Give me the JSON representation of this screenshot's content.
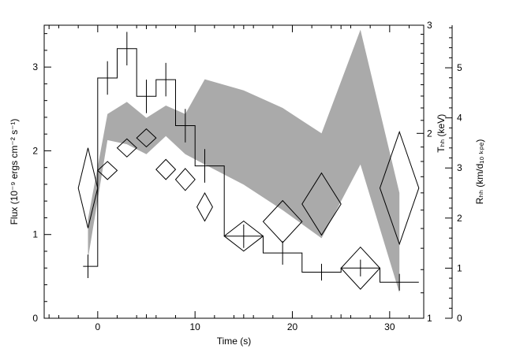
{
  "chart_data": {
    "type": "line",
    "xlabel": "Time (s)",
    "ylabel": "Flux (10⁻⁹ ergs cm⁻² s⁻¹)",
    "y2label": "Tₕₕ (keV)",
    "y3label": "Rₕₕ (km/d₁₀ ₖₚₑ)",
    "xlim": [
      -5.5,
      33.5
    ],
    "ylim": [
      0,
      3.5
    ],
    "y2lim": [
      1,
      3
    ],
    "y2scale": "log",
    "y3lim": [
      0,
      5.85
    ],
    "xticks": [
      "0",
      "10",
      "20",
      "30"
    ],
    "yticks": [
      "0",
      "1",
      "2",
      "3"
    ],
    "y2ticks": [
      "1",
      "2",
      "3"
    ],
    "y3ticks": [
      "0",
      "1",
      "2",
      "3",
      "4",
      "5"
    ],
    "colors": {
      "band": "#aaaaaa",
      "line": "#000000"
    },
    "flux_steps": {
      "edges": [
        -1.5,
        0,
        2,
        4,
        6,
        8,
        10,
        13,
        17,
        21,
        25,
        29,
        33
      ],
      "values": [
        0.62,
        2.87,
        3.22,
        2.65,
        2.85,
        2.3,
        1.82,
        0.98,
        0.78,
        0.55,
        0.6,
        0.43
      ]
    },
    "flux_errors": [
      {
        "x": -1,
        "y": 0.62,
        "lo": 0.48,
        "hi": 0.76
      },
      {
        "x": 1,
        "y": 2.87,
        "lo": 2.67,
        "hi": 3.07
      },
      {
        "x": 3,
        "y": 3.22,
        "lo": 3.02,
        "hi": 3.42
      },
      {
        "x": 5,
        "y": 2.65,
        "lo": 2.45,
        "hi": 2.85
      },
      {
        "x": 7,
        "y": 2.85,
        "lo": 2.65,
        "hi": 3.05
      },
      {
        "x": 9,
        "y": 2.3,
        "lo": 2.1,
        "hi": 2.5
      },
      {
        "x": 11,
        "y": 1.82,
        "lo": 1.62,
        "hi": 2.02
      },
      {
        "x": 15,
        "y": 0.98,
        "lo": 0.84,
        "hi": 1.12
      },
      {
        "x": 19,
        "y": 0.78,
        "lo": 0.64,
        "hi": 0.92
      },
      {
        "x": 23,
        "y": 0.55,
        "lo": 0.45,
        "hi": 0.65
      },
      {
        "x": 27,
        "y": 0.6,
        "lo": 0.5,
        "hi": 0.7
      },
      {
        "x": 31,
        "y": 0.43,
        "lo": 0.33,
        "hi": 0.53
      }
    ],
    "temperature_band": {
      "x": [
        -1,
        1,
        3,
        5,
        7,
        9,
        11,
        15,
        19,
        23,
        27,
        31
      ],
      "lower": [
        1.25,
        1.95,
        1.92,
        1.85,
        1.98,
        1.85,
        1.78,
        1.65,
        1.5,
        1.35,
        1.78,
        1.1
      ],
      "upper": [
        1.45,
        2.15,
        2.25,
        2.12,
        2.22,
        2.15,
        2.45,
        2.35,
        2.2,
        2.0,
        2.95,
        1.6
      ]
    },
    "radius_points": [
      {
        "x": -1,
        "y": 2.6,
        "dx": 1.0,
        "dy": 0.8
      },
      {
        "x": 1,
        "y": 2.95,
        "dx": 1.0,
        "dy": 0.18
      },
      {
        "x": 3,
        "y": 3.4,
        "dx": 1.0,
        "dy": 0.18
      },
      {
        "x": 5,
        "y": 3.6,
        "dx": 1.0,
        "dy": 0.18
      },
      {
        "x": 7,
        "y": 2.97,
        "dx": 1.0,
        "dy": 0.2
      },
      {
        "x": 9,
        "y": 2.77,
        "dx": 1.0,
        "dy": 0.22
      },
      {
        "x": 11,
        "y": 2.22,
        "dx": 0.8,
        "dy": 0.28
      },
      {
        "x": 15,
        "y": 1.64,
        "dx": 2.0,
        "dy": 0.3
      },
      {
        "x": 19,
        "y": 1.93,
        "dx": 2.0,
        "dy": 0.42
      },
      {
        "x": 23,
        "y": 2.28,
        "dx": 2.0,
        "dy": 0.62
      },
      {
        "x": 27,
        "y": 1.0,
        "dx": 2.0,
        "dy": 0.42
      },
      {
        "x": 31,
        "y": 2.6,
        "dx": 2.0,
        "dy": 1.12
      }
    ]
  }
}
